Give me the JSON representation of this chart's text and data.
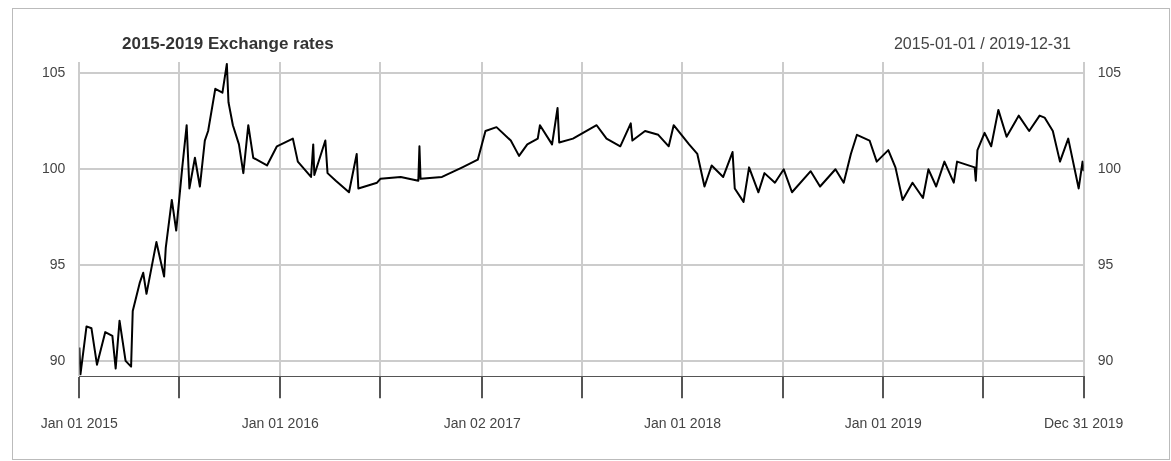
{
  "chart_data": {
    "type": "line",
    "title": "2015-2019 Exchange rates",
    "subtitle": "2015-01-01 / 2019-12-31",
    "x": [
      "2015-01-01",
      "2015-01-03",
      "2015-01-14",
      "2015-01-23",
      "2015-02-02",
      "2015-02-17",
      "2015-03-02",
      "2015-03-08",
      "2015-03-15",
      "2015-03-26",
      "2015-04-05",
      "2015-04-08",
      "2015-04-21",
      "2015-04-27",
      "2015-05-03",
      "2015-05-21",
      "2015-06-04",
      "2015-06-07",
      "2015-06-18",
      "2015-06-26",
      "2015-07-07",
      "2015-07-15",
      "2015-07-20",
      "2015-07-30",
      "2015-08-08",
      "2015-08-17",
      "2015-08-23",
      "2015-09-05",
      "2015-09-18",
      "2015-09-26",
      "2015-09-29",
      "2015-10-07",
      "2015-10-18",
      "2015-10-26",
      "2015-11-04",
      "2015-11-13",
      "2015-12-08",
      "2015-12-26",
      "2016-01-24",
      "2016-02-02",
      "2016-02-26",
      "2016-03-01",
      "2016-03-03",
      "2016-03-23",
      "2016-03-27",
      "2016-04-11",
      "2016-05-05",
      "2016-05-19",
      "2016-05-22",
      "2016-06-25",
      "2016-07-01",
      "2016-08-07",
      "2016-09-08",
      "2016-09-10",
      "2016-09-12",
      "2016-10-21",
      "2016-11-27",
      "2016-12-25",
      "2017-01-08",
      "2017-01-28",
      "2017-02-23",
      "2017-03-10",
      "2017-03-25",
      "2017-04-13",
      "2017-04-17",
      "2017-05-09",
      "2017-05-19",
      "2017-05-22",
      "2017-06-16",
      "2017-07-29",
      "2017-08-16",
      "2017-09-10",
      "2017-09-29",
      "2017-10-02",
      "2017-10-25",
      "2017-11-18",
      "2017-12-07",
      "2017-12-16",
      "2018-01-13",
      "2018-01-28",
      "2018-02-10",
      "2018-02-23",
      "2018-03-16",
      "2018-04-02",
      "2018-04-06",
      "2018-04-22",
      "2018-05-02",
      "2018-05-19",
      "2018-05-30",
      "2018-06-18",
      "2018-07-04",
      "2018-07-19",
      "2018-08-22",
      "2018-09-08",
      "2018-10-06",
      "2018-10-21",
      "2018-11-03",
      "2018-11-14",
      "2018-12-07",
      "2018-12-20",
      "2019-01-10",
      "2019-01-23",
      "2019-02-05",
      "2019-02-23",
      "2019-03-14",
      "2019-03-24",
      "2019-04-07",
      "2019-04-22",
      "2019-05-09",
      "2019-05-15",
      "2019-06-16",
      "2019-06-18",
      "2019-06-21",
      "2019-07-04",
      "2019-07-16",
      "2019-07-29",
      "2019-08-13",
      "2019-09-04",
      "2019-09-23",
      "2019-10-12",
      "2019-10-21",
      "2019-11-05",
      "2019-11-18",
      "2019-12-03",
      "2019-12-22",
      "2019-12-29",
      "2019-12-31"
    ],
    "series": [
      {
        "color": "#000000",
        "values": [
          90.7,
          89.3,
          91.8,
          91.7,
          89.8,
          91.5,
          91.3,
          89.6,
          92.1,
          90.0,
          89.7,
          92.6,
          94.1,
          94.6,
          93.5,
          96.2,
          94.4,
          95.9,
          98.4,
          96.8,
          100.1,
          102.3,
          99.0,
          100.6,
          99.1,
          101.5,
          102.0,
          104.2,
          104.0,
          105.5,
          103.5,
          102.3,
          101.3,
          99.8,
          102.3,
          100.6,
          100.2,
          101.2,
          101.6,
          100.4,
          99.6,
          101.3,
          99.7,
          101.5,
          99.8,
          99.4,
          98.8,
          100.8,
          99.0,
          99.3,
          99.5,
          99.6,
          99.4,
          101.2,
          99.5,
          99.6,
          100.1,
          100.5,
          102.0,
          102.2,
          101.5,
          100.7,
          101.3,
          101.6,
          102.3,
          101.3,
          103.2,
          101.4,
          101.6,
          102.3,
          101.6,
          101.2,
          102.4,
          101.5,
          102.0,
          101.8,
          101.2,
          102.3,
          101.3,
          100.8,
          99.1,
          100.2,
          99.6,
          100.9,
          99.0,
          98.3,
          100.1,
          98.8,
          99.8,
          99.3,
          100.0,
          98.8,
          99.9,
          99.1,
          100.0,
          99.3,
          100.8,
          101.8,
          101.5,
          100.4,
          101.0,
          100.1,
          98.4,
          99.3,
          98.5,
          100.0,
          99.1,
          100.4,
          99.3,
          100.4,
          100.1,
          99.4,
          101.0,
          101.9,
          101.2,
          103.1,
          101.7,
          102.8,
          102.0,
          102.8,
          102.7,
          102.0,
          100.4,
          101.6,
          99.0,
          100.4,
          99.9
        ]
      }
    ],
    "xlim": [
      "2015-01-01",
      "2019-12-31"
    ],
    "xticks": [
      {
        "value": "2015-01-01",
        "label": "Jan 01 2015"
      },
      {
        "value": "2015-07-01",
        "label": null
      },
      {
        "value": "2016-01-01",
        "label": "Jan 01 2016"
      },
      {
        "value": "2016-07-01",
        "label": null
      },
      {
        "value": "2017-01-02",
        "label": "Jan 02 2017"
      },
      {
        "value": "2017-07-03",
        "label": null
      },
      {
        "value": "2018-01-01",
        "label": "Jan 01 2018"
      },
      {
        "value": "2018-07-02",
        "label": null
      },
      {
        "value": "2019-01-01",
        "label": "Jan 01 2019"
      },
      {
        "value": "2019-07-01",
        "label": null
      },
      {
        "value": "2019-12-31",
        "label": "Dec 31 2019"
      }
    ],
    "ylim": [
      89.2,
      105.6
    ],
    "yticks": [
      90,
      95,
      100,
      105
    ],
    "y2lim": [
      89.2,
      105.6
    ],
    "y2ticks": [
      90,
      95,
      100,
      105
    ],
    "grid": true,
    "legend": false,
    "marker": "none",
    "line_style": "solid"
  }
}
